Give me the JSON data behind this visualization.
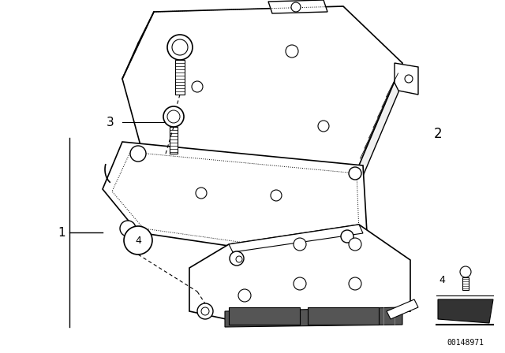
{
  "bg_color": "#ffffff",
  "line_color": "#000000",
  "label_color": "#000000",
  "figure_size": [
    6.4,
    4.48
  ],
  "dpi": 100,
  "watermark": "00148971"
}
